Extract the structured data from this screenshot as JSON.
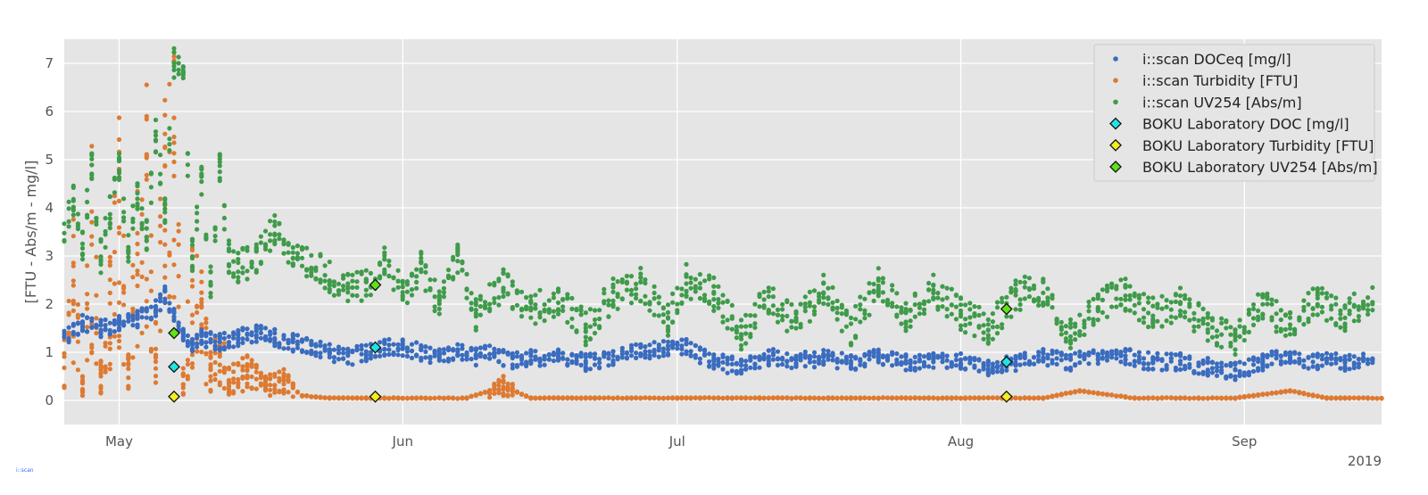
{
  "chart_data": {
    "type": "scatter",
    "title": "",
    "xlabel": "",
    "ylabel": "[FTU - Abs/m - mg/l]",
    "x_offset_label": "2019",
    "xlim": [
      "2019-04-25",
      "2019-09-16"
    ],
    "ylim": [
      -0.5,
      7.5
    ],
    "x_ticks": [
      {
        "date": "2019-05-01",
        "label": "May"
      },
      {
        "date": "2019-06-01",
        "label": "Jun"
      },
      {
        "date": "2019-07-01",
        "label": "Jul"
      },
      {
        "date": "2019-08-01",
        "label": "Aug"
      },
      {
        "date": "2019-09-01",
        "label": "Sep"
      }
    ],
    "y_ticks": [
      0,
      1,
      2,
      3,
      4,
      5,
      6,
      7
    ],
    "grid": true,
    "legend_position": "top-right",
    "background": "#e5e5e5",
    "series": [
      {
        "name": "i::scan DOCeq [mg/l]",
        "marker": "dot",
        "color": "#3a6cbf",
        "points": [
          [
            "2019-04-25",
            1.3
          ],
          [
            "2019-04-27",
            1.6
          ],
          [
            "2019-04-29",
            1.5
          ],
          [
            "2019-05-01",
            1.6
          ],
          [
            "2019-05-03",
            1.7
          ],
          [
            "2019-05-05",
            1.9
          ],
          [
            "2019-05-06",
            2.2
          ],
          [
            "2019-05-07",
            1.8
          ],
          [
            "2019-05-08",
            1.4
          ],
          [
            "2019-05-09",
            1.2
          ],
          [
            "2019-05-10",
            1.3
          ],
          [
            "2019-05-12",
            1.2
          ],
          [
            "2019-05-14",
            1.3
          ],
          [
            "2019-05-16",
            1.4
          ],
          [
            "2019-05-18",
            1.3
          ],
          [
            "2019-05-20",
            1.2
          ],
          [
            "2019-05-22",
            1.1
          ],
          [
            "2019-05-24",
            1.0
          ],
          [
            "2019-05-26",
            0.9
          ],
          [
            "2019-05-28",
            1.0
          ],
          [
            "2019-05-30",
            1.1
          ],
          [
            "2019-06-01",
            1.1
          ],
          [
            "2019-06-03",
            1.0
          ],
          [
            "2019-06-05",
            0.9
          ],
          [
            "2019-06-07",
            1.0
          ],
          [
            "2019-06-09",
            0.9
          ],
          [
            "2019-06-11",
            1.0
          ],
          [
            "2019-06-13",
            0.8
          ],
          [
            "2019-06-15",
            0.9
          ],
          [
            "2019-06-18",
            0.9
          ],
          [
            "2019-06-21",
            0.8
          ],
          [
            "2019-06-24",
            0.9
          ],
          [
            "2019-06-27",
            1.0
          ],
          [
            "2019-06-30",
            1.1
          ],
          [
            "2019-07-02",
            1.1
          ],
          [
            "2019-07-05",
            0.8
          ],
          [
            "2019-07-08",
            0.7
          ],
          [
            "2019-07-11",
            0.9
          ],
          [
            "2019-07-14",
            0.8
          ],
          [
            "2019-07-17",
            0.9
          ],
          [
            "2019-07-20",
            0.8
          ],
          [
            "2019-07-23",
            0.9
          ],
          [
            "2019-07-26",
            0.8
          ],
          [
            "2019-07-29",
            0.8
          ],
          [
            "2019-08-01",
            0.8
          ],
          [
            "2019-08-04",
            0.7
          ],
          [
            "2019-08-07",
            0.8
          ],
          [
            "2019-08-10",
            0.9
          ],
          [
            "2019-08-13",
            0.8
          ],
          [
            "2019-08-16",
            0.9
          ],
          [
            "2019-08-19",
            0.9
          ],
          [
            "2019-08-22",
            0.8
          ],
          [
            "2019-08-25",
            0.8
          ],
          [
            "2019-08-28",
            0.7
          ],
          [
            "2019-08-31",
            0.6
          ],
          [
            "2019-09-03",
            0.8
          ],
          [
            "2019-09-06",
            0.9
          ],
          [
            "2019-09-09",
            0.8
          ],
          [
            "2019-09-12",
            0.8
          ],
          [
            "2019-09-15",
            0.9
          ]
        ]
      },
      {
        "name": "i::scan Turbidity [FTU]",
        "marker": "dot",
        "color": "#dd7a32",
        "points": [
          [
            "2019-04-25",
            0.8
          ],
          [
            "2019-04-26",
            2.5
          ],
          [
            "2019-04-27",
            0.3
          ],
          [
            "2019-04-28",
            3.2
          ],
          [
            "2019-04-29",
            0.5
          ],
          [
            "2019-04-30",
            1.8
          ],
          [
            "2019-05-01",
            3.6
          ],
          [
            "2019-05-02",
            0.6
          ],
          [
            "2019-05-03",
            2.8
          ],
          [
            "2019-05-04",
            4.0
          ],
          [
            "2019-05-05",
            1.2
          ],
          [
            "2019-05-06",
            3.8
          ],
          [
            "2019-05-07",
            4.6
          ],
          [
            "2019-05-08",
            0.4
          ],
          [
            "2019-05-09",
            2.2
          ],
          [
            "2019-05-10",
            1.6
          ],
          [
            "2019-05-11",
            0.6
          ],
          [
            "2019-05-12",
            1.0
          ],
          [
            "2019-05-13",
            0.4
          ],
          [
            "2019-05-15",
            0.6
          ],
          [
            "2019-05-17",
            0.3
          ],
          [
            "2019-05-19",
            0.4
          ],
          [
            "2019-05-21",
            0.1
          ],
          [
            "2019-05-24",
            0.05
          ],
          [
            "2019-05-28",
            0.05
          ],
          [
            "2019-06-02",
            0.05
          ],
          [
            "2019-06-08",
            0.05
          ],
          [
            "2019-06-12",
            0.3
          ],
          [
            "2019-06-15",
            0.05
          ],
          [
            "2019-06-22",
            0.05
          ],
          [
            "2019-07-01",
            0.05
          ],
          [
            "2019-07-10",
            0.05
          ],
          [
            "2019-07-20",
            0.05
          ],
          [
            "2019-07-31",
            0.05
          ],
          [
            "2019-08-10",
            0.05
          ],
          [
            "2019-08-14",
            0.2
          ],
          [
            "2019-08-20",
            0.05
          ],
          [
            "2019-08-31",
            0.05
          ],
          [
            "2019-09-06",
            0.2
          ],
          [
            "2019-09-10",
            0.05
          ],
          [
            "2019-09-16",
            0.05
          ]
        ]
      },
      {
        "name": "i::scan UV254 [Abs/m]",
        "marker": "dot",
        "color": "#3f9b4a",
        "points": [
          [
            "2019-04-25",
            3.5
          ],
          [
            "2019-04-26",
            4.2
          ],
          [
            "2019-04-27",
            3.2
          ],
          [
            "2019-04-28",
            4.9
          ],
          [
            "2019-04-29",
            3.0
          ],
          [
            "2019-04-30",
            3.9
          ],
          [
            "2019-05-01",
            4.9
          ],
          [
            "2019-05-02",
            3.2
          ],
          [
            "2019-05-03",
            4.3
          ],
          [
            "2019-05-04",
            3.4
          ],
          [
            "2019-05-05",
            5.5
          ],
          [
            "2019-05-06",
            4.0
          ],
          [
            "2019-05-07",
            7.0
          ],
          [
            "2019-05-08",
            6.9
          ],
          [
            "2019-05-09",
            3.0
          ],
          [
            "2019-05-10",
            4.5
          ],
          [
            "2019-05-11",
            2.5
          ],
          [
            "2019-05-12",
            4.8
          ],
          [
            "2019-05-13",
            3.0
          ],
          [
            "2019-05-14",
            2.8
          ],
          [
            "2019-05-16",
            2.9
          ],
          [
            "2019-05-18",
            3.6
          ],
          [
            "2019-05-20",
            3.0
          ],
          [
            "2019-05-22",
            2.8
          ],
          [
            "2019-05-24",
            2.6
          ],
          [
            "2019-05-26",
            2.3
          ],
          [
            "2019-05-28",
            2.4
          ],
          [
            "2019-05-30",
            2.9
          ],
          [
            "2019-06-01",
            2.2
          ],
          [
            "2019-06-03",
            2.8
          ],
          [
            "2019-06-05",
            2.0
          ],
          [
            "2019-06-07",
            3.0
          ],
          [
            "2019-06-09",
            1.8
          ],
          [
            "2019-06-12",
            2.4
          ],
          [
            "2019-06-15",
            1.9
          ],
          [
            "2019-06-18",
            2.1
          ],
          [
            "2019-06-21",
            1.5
          ],
          [
            "2019-06-24",
            2.2
          ],
          [
            "2019-06-27",
            2.4
          ],
          [
            "2019-06-30",
            1.7
          ],
          [
            "2019-07-02",
            2.5
          ],
          [
            "2019-07-05",
            2.2
          ],
          [
            "2019-07-08",
            1.4
          ],
          [
            "2019-07-11",
            2.1
          ],
          [
            "2019-07-14",
            1.6
          ],
          [
            "2019-07-17",
            2.3
          ],
          [
            "2019-07-20",
            1.5
          ],
          [
            "2019-07-23",
            2.4
          ],
          [
            "2019-07-26",
            1.7
          ],
          [
            "2019-07-29",
            2.3
          ],
          [
            "2019-08-01",
            1.8
          ],
          [
            "2019-08-04",
            1.5
          ],
          [
            "2019-08-07",
            2.2
          ],
          [
            "2019-08-10",
            2.3
          ],
          [
            "2019-08-13",
            1.4
          ],
          [
            "2019-08-16",
            2.0
          ],
          [
            "2019-08-19",
            2.2
          ],
          [
            "2019-08-22",
            1.8
          ],
          [
            "2019-08-25",
            2.0
          ],
          [
            "2019-08-28",
            1.5
          ],
          [
            "2019-08-31",
            1.3
          ],
          [
            "2019-09-03",
            2.0
          ],
          [
            "2019-09-06",
            1.5
          ],
          [
            "2019-09-09",
            2.1
          ],
          [
            "2019-09-12",
            1.8
          ],
          [
            "2019-09-15",
            2.1
          ]
        ]
      },
      {
        "name": "BOKU Laboratory DOC [mg/l]",
        "marker": "diamond",
        "color": "#22e3e3",
        "points": [
          [
            "2019-05-07",
            0.7
          ],
          [
            "2019-05-29",
            1.1
          ],
          [
            "2019-08-06",
            0.8
          ]
        ]
      },
      {
        "name": "BOKU Laboratory Turbidity [FTU]",
        "marker": "diamond",
        "color": "#f2ee1f",
        "points": [
          [
            "2019-05-07",
            0.08
          ],
          [
            "2019-05-29",
            0.08
          ],
          [
            "2019-08-06",
            0.08
          ]
        ]
      },
      {
        "name": "BOKU Laboratory UV254 [Abs/m]",
        "marker": "diamond",
        "color": "#62e01a",
        "points": [
          [
            "2019-05-07",
            1.4
          ],
          [
            "2019-05-29",
            2.4
          ],
          [
            "2019-08-06",
            1.9
          ]
        ]
      }
    ]
  }
}
